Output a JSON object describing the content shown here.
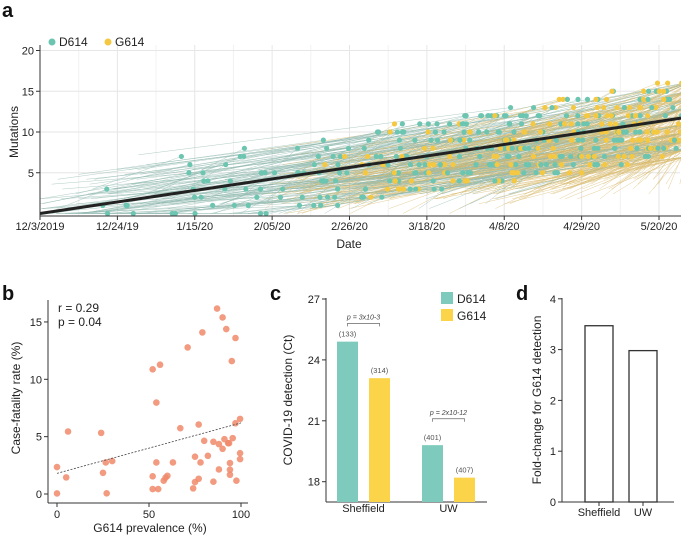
{
  "chart_data": [
    {
      "panel": "a",
      "type": "line",
      "xlabel": "Date",
      "ylabel": "Mutations",
      "x_ticks": [
        "12/3/2019",
        "12/24/19",
        "1/15/20",
        "2/05/20",
        "2/26/20",
        "3/18/20",
        "4/8/20",
        "4/29/20",
        "5/20/20"
      ],
      "y_ticks": [
        5,
        10,
        15,
        20
      ],
      "ylim": [
        0,
        20
      ],
      "grid": true,
      "legend_position": "top-left",
      "series": [
        {
          "name": "D614",
          "color": "#6cc5b0"
        },
        {
          "name": "G614",
          "color": "#f5c842"
        }
      ],
      "trend_line": {
        "x": [
          "12/3/2019",
          "5/26/20"
        ],
        "y": [
          0,
          11.7
        ],
        "color": "#222222"
      }
    },
    {
      "panel": "b",
      "type": "scatter",
      "xlabel": "G614 prevalence (%)",
      "ylabel": "Case-fatality rate (%)",
      "x_ticks": [
        0,
        50,
        100
      ],
      "y_ticks": [
        0,
        5,
        10,
        15
      ],
      "xlim": [
        -3,
        103
      ],
      "ylim": [
        -0.8,
        17
      ],
      "annotation_r": "r = 0.29",
      "annotation_p": "p = 0.04",
      "point_color": "#f08a6a",
      "trend_line": {
        "x": [
          0,
          100
        ],
        "y": [
          1.8,
          6.2
        ]
      },
      "points": [
        [
          0,
          2.35
        ],
        [
          0,
          0.05
        ],
        [
          5,
          1.45
        ],
        [
          6,
          5.45
        ],
        [
          24,
          5.33
        ],
        [
          25,
          1.85
        ],
        [
          26.5,
          2.75
        ],
        [
          27,
          0.06
        ],
        [
          30,
          2.87
        ],
        [
          52,
          10.87
        ],
        [
          56,
          11.27
        ],
        [
          54,
          7.97
        ],
        [
          52,
          1.54
        ],
        [
          52,
          0.43
        ],
        [
          55,
          0.43
        ],
        [
          54,
          2.75
        ],
        [
          58,
          1.16
        ],
        [
          59,
          1.42
        ],
        [
          60,
          1.59
        ],
        [
          63,
          2.75
        ],
        [
          67,
          5.74
        ],
        [
          71,
          12.78
        ],
        [
          74,
          0.49
        ],
        [
          75,
          1.04
        ],
        [
          75,
          3.25
        ],
        [
          77,
          6.06
        ],
        [
          77,
          1.33
        ],
        [
          78,
          2.75
        ],
        [
          79,
          14.09
        ],
        [
          80,
          4.64
        ],
        [
          82,
          3.33
        ],
        [
          85,
          4.55
        ],
        [
          85,
          1.07
        ],
        [
          87,
          16.17
        ],
        [
          88,
          4.35
        ],
        [
          88,
          2.14
        ],
        [
          90,
          15.39
        ],
        [
          90,
          3.94
        ],
        [
          91,
          4.78
        ],
        [
          92,
          14.38
        ],
        [
          93,
          4.43
        ],
        [
          93.5,
          4.43
        ],
        [
          94,
          2.7
        ],
        [
          94,
          2.12
        ],
        [
          94,
          1.68
        ],
        [
          95,
          11.59
        ],
        [
          95.5,
          4.87
        ],
        [
          97,
          13.6
        ],
        [
          97,
          6.17
        ],
        [
          97.5,
          1.16
        ],
        [
          99.5,
          6.55
        ],
        [
          99.5,
          3.56
        ],
        [
          99.5,
          3.04
        ]
      ]
    },
    {
      "panel": "c",
      "type": "bar",
      "ylabel": "COVID-19 detection (Ct)",
      "categories": [
        "Sheffield",
        "UW"
      ],
      "y_ticks": [
        18,
        21,
        24,
        27
      ],
      "ylim": [
        17,
        27
      ],
      "series": [
        {
          "name": "D614",
          "color": "#7ecbbd",
          "values": [
            24.9,
            19.8
          ],
          "labels": [
            "(133)",
            "(401)"
          ]
        },
        {
          "name": "G614",
          "color": "#fbd44a",
          "values": [
            23.1,
            18.2
          ],
          "labels": [
            "(314)",
            "(407)"
          ]
        }
      ],
      "pvalues": [
        "p = 3x10-3",
        "p = 2x10-12"
      ]
    },
    {
      "panel": "d",
      "type": "bar",
      "ylabel": "Fold-change for G614 detection",
      "categories": [
        "Sheffield",
        "UW"
      ],
      "values": [
        3.47,
        2.98
      ],
      "y_ticks": [
        0,
        1,
        2,
        3,
        4
      ],
      "ylim": [
        0,
        4
      ]
    }
  ],
  "panels": {
    "a": "a",
    "b": "b",
    "c": "c",
    "d": "d"
  }
}
